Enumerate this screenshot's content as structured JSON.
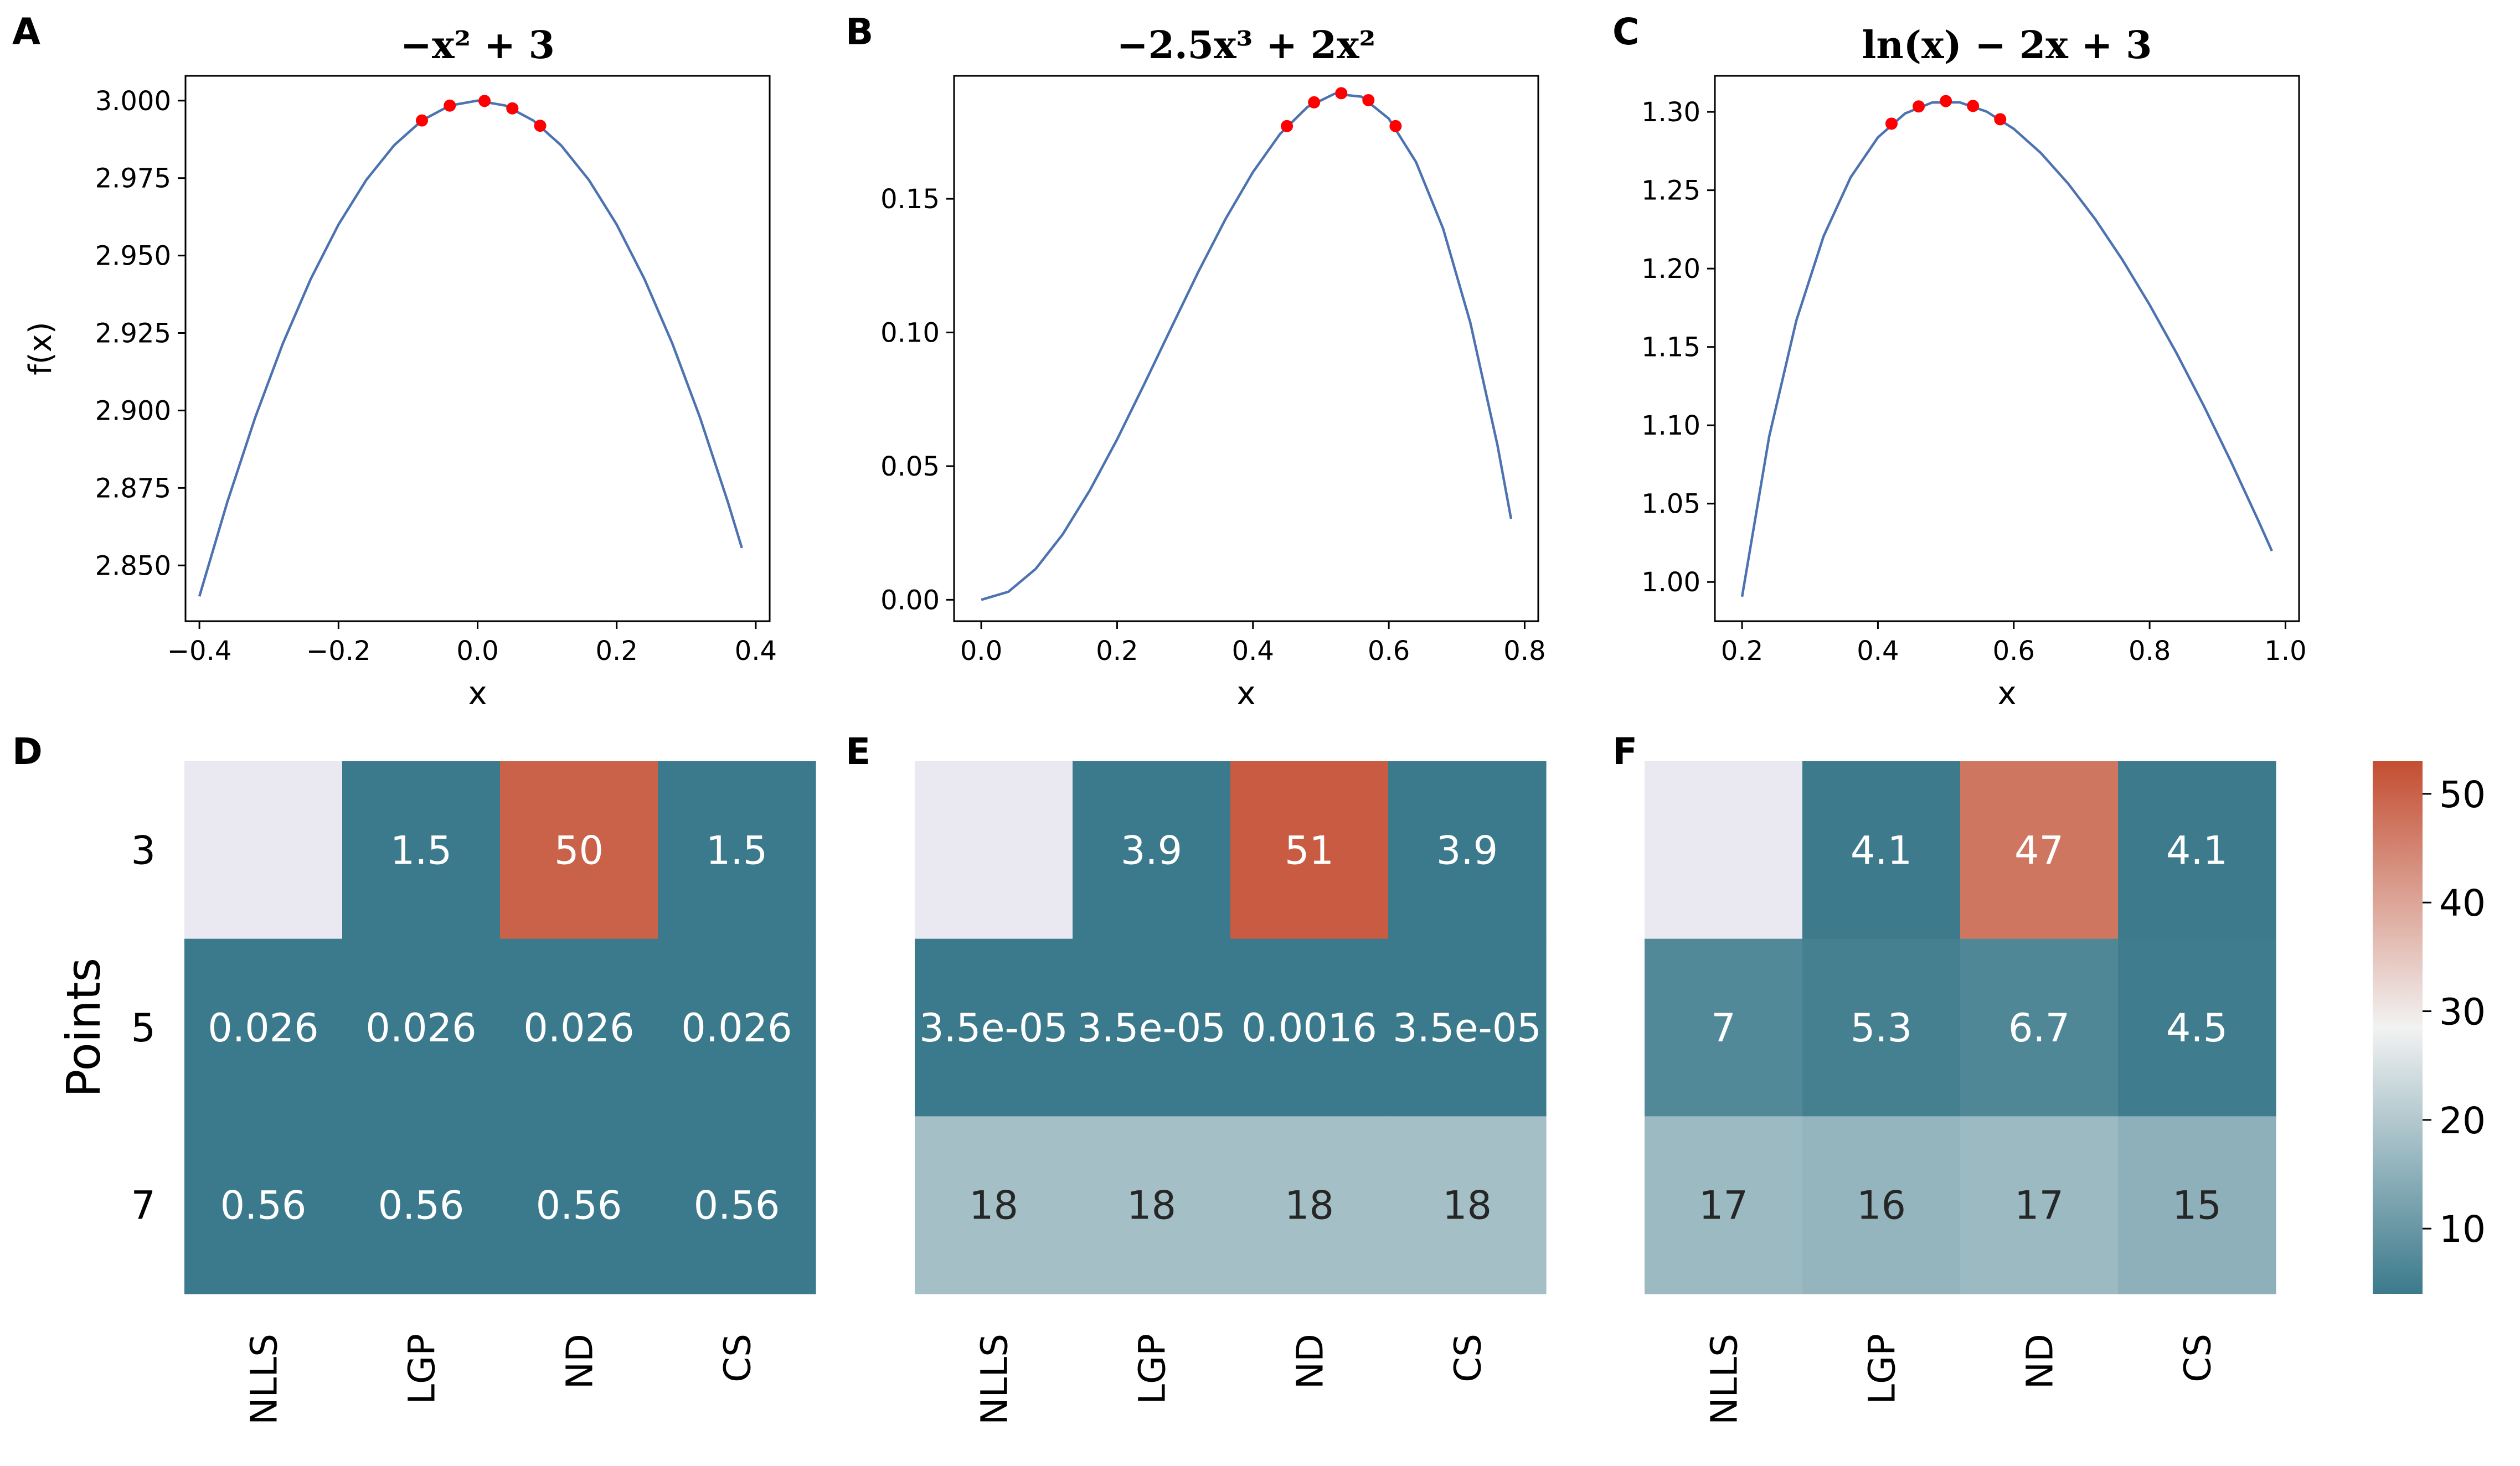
{
  "colors": {
    "line": "#4c72b0",
    "marker": "#ff0000",
    "axis": "#000000",
    "missing_cell": "#eae9f2",
    "cmap_low": "#3b7a8c",
    "cmap_mid": "#f2f2f2",
    "cmap_high": "#c44e32",
    "cell_text_light": "#ffffff",
    "cell_text_dark": "#262626"
  },
  "chart_data": [
    {
      "panel": "A",
      "type": "line",
      "title": "−x² + 3",
      "xlabel": "x",
      "ylabel": "f(x)",
      "xlim": [
        -0.42,
        0.42
      ],
      "ylim": [
        2.832,
        3.008
      ],
      "xticks": [
        -0.4,
        -0.2,
        0.0,
        0.2,
        0.4
      ],
      "xtick_labels": [
        "−0.4",
        "−0.2",
        "0.0",
        "0.2",
        "0.4"
      ],
      "yticks": [
        2.85,
        2.875,
        2.9,
        2.925,
        2.95,
        2.975,
        3.0
      ],
      "ytick_labels": [
        "2.850",
        "2.875",
        "2.900",
        "2.925",
        "2.950",
        "2.975",
        "3.000"
      ],
      "x": [
        -0.4,
        -0.36,
        -0.32,
        -0.28,
        -0.24,
        -0.2,
        -0.16,
        -0.12,
        -0.08,
        -0.04,
        0.0,
        0.04,
        0.08,
        0.12,
        0.16,
        0.2,
        0.24,
        0.28,
        0.32,
        0.36,
        0.38
      ],
      "y": [
        2.84,
        2.8704,
        2.8976,
        2.9216,
        2.9424,
        2.96,
        2.9744,
        2.9856,
        2.9936,
        2.9984,
        3.0,
        2.9984,
        2.9936,
        2.9856,
        2.9744,
        2.96,
        2.9424,
        2.9216,
        2.8976,
        2.8704,
        2.8556
      ],
      "points_x": [
        -0.08,
        -0.04,
        0.01,
        0.05,
        0.09
      ],
      "points_y": [
        2.9936,
        2.9984,
        2.9999,
        2.9975,
        2.9919
      ]
    },
    {
      "panel": "B",
      "type": "line",
      "title": "−2.5x³ + 2x²",
      "xlabel": "x",
      "ylabel": "",
      "xlim": [
        -0.04,
        0.82
      ],
      "ylim": [
        -0.008,
        0.196
      ],
      "xticks": [
        0.0,
        0.2,
        0.4,
        0.6,
        0.8
      ],
      "xtick_labels": [
        "0.0",
        "0.2",
        "0.4",
        "0.6",
        "0.8"
      ],
      "yticks": [
        0.0,
        0.05,
        0.1,
        0.15
      ],
      "ytick_labels": [
        "0.00",
        "0.05",
        "0.10",
        "0.15"
      ],
      "x": [
        0.0,
        0.04,
        0.08,
        0.12,
        0.16,
        0.2,
        0.24,
        0.28,
        0.32,
        0.36,
        0.4,
        0.44,
        0.48,
        0.52,
        0.56,
        0.6,
        0.64,
        0.68,
        0.72,
        0.76,
        0.78
      ],
      "y": [
        0.0,
        0.003,
        0.0115,
        0.0245,
        0.041,
        0.06,
        0.0807,
        0.1019,
        0.1229,
        0.1426,
        0.16,
        0.1743,
        0.1843,
        0.1893,
        0.1882,
        0.18,
        0.1638,
        0.1388,
        0.1037,
        0.0578,
        0.0303
      ],
      "points_x": [
        0.45,
        0.49,
        0.53,
        0.57,
        0.61
      ],
      "points_y": [
        0.1772,
        0.1861,
        0.1895,
        0.1869,
        0.1772
      ]
    },
    {
      "panel": "C",
      "type": "line",
      "title": "ln(x) − 2x + 3",
      "xlabel": "x",
      "ylabel": "",
      "xlim": [
        0.16,
        1.02
      ],
      "ylim": [
        0.975,
        1.323
      ],
      "xticks": [
        0.2,
        0.4,
        0.6,
        0.8,
        1.0
      ],
      "xtick_labels": [
        "0.2",
        "0.4",
        "0.6",
        "0.8",
        "1.0"
      ],
      "yticks": [
        1.0,
        1.05,
        1.1,
        1.15,
        1.2,
        1.25,
        1.3
      ],
      "ytick_labels": [
        "1.00",
        "1.05",
        "1.10",
        "1.15",
        "1.20",
        "1.25",
        "1.30"
      ],
      "x": [
        0.2,
        0.24,
        0.28,
        0.32,
        0.36,
        0.4,
        0.44,
        0.48,
        0.52,
        0.56,
        0.6,
        0.64,
        0.68,
        0.72,
        0.76,
        0.8,
        0.84,
        0.88,
        0.92,
        0.96,
        0.98
      ],
      "y": [
        0.9906,
        1.0929,
        1.167,
        1.2206,
        1.2583,
        1.2837,
        1.299,
        1.306,
        1.3061,
        1.3002,
        1.2892,
        1.2737,
        1.2543,
        1.2315,
        1.2056,
        1.1769,
        1.1457,
        1.1122,
        1.0766,
        1.0392,
        1.0198
      ],
      "points_x": [
        0.42,
        0.46,
        0.5,
        0.54,
        0.58
      ],
      "points_y": [
        1.2925,
        1.3035,
        1.3069,
        1.3038,
        1.2953
      ]
    },
    {
      "panel": "D",
      "type": "heatmap",
      "ylabel": "Points",
      "rows": [
        "3",
        "5",
        "7"
      ],
      "columns": [
        "NLLS",
        "LGP",
        "ND",
        "CS"
      ],
      "values": [
        [
          null,
          1.5,
          50,
          1.5
        ],
        [
          0.026,
          0.026,
          0.026,
          0.026
        ],
        [
          0.56,
          0.56,
          0.56,
          0.56
        ]
      ],
      "labels": [
        [
          "",
          "1.5",
          "50",
          "1.5"
        ],
        [
          "0.026",
          "0.026",
          "0.026",
          "0.026"
        ],
        [
          "0.56",
          "0.56",
          "0.56",
          "0.56"
        ]
      ]
    },
    {
      "panel": "E",
      "type": "heatmap",
      "ylabel": "",
      "rows": [
        "3",
        "5",
        "7"
      ],
      "columns": [
        "NLLS",
        "LGP",
        "ND",
        "CS"
      ],
      "values": [
        [
          null,
          3.9,
          51,
          3.9
        ],
        [
          3.5e-05,
          3.5e-05,
          0.0016,
          3.5e-05
        ],
        [
          18,
          18,
          18,
          18
        ]
      ],
      "labels": [
        [
          "",
          "3.9",
          "51",
          "3.9"
        ],
        [
          "3.5e-05",
          "3.5e-05",
          "0.0016",
          "3.5e-05"
        ],
        [
          "18",
          "18",
          "18",
          "18"
        ]
      ]
    },
    {
      "panel": "F",
      "type": "heatmap",
      "ylabel": "",
      "rows": [
        "3",
        "5",
        "7"
      ],
      "columns": [
        "NLLS",
        "LGP",
        "ND",
        "CS"
      ],
      "values": [
        [
          null,
          4.1,
          47,
          4.1
        ],
        [
          7,
          5.3,
          6.7,
          4.5
        ],
        [
          17,
          16,
          17,
          15
        ]
      ],
      "labels": [
        [
          "",
          "4.1",
          "47",
          "4.1"
        ],
        [
          "7",
          "5.3",
          "6.7",
          "4.5"
        ],
        [
          "17",
          "16",
          "17",
          "15"
        ]
      ]
    }
  ],
  "colorbar": {
    "min": 4,
    "max": 53,
    "ticks": [
      10,
      20,
      30,
      40,
      50
    ],
    "tick_labels": [
      "10",
      "20",
      "30",
      "40",
      "50"
    ]
  }
}
